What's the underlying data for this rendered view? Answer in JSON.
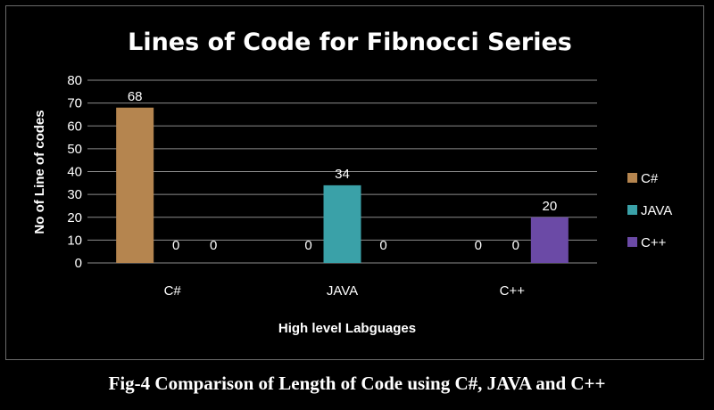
{
  "caption": "Fig-4 Comparison of Length of Code using C#, JAVA and C++",
  "chart_data": {
    "type": "bar",
    "title": "Lines of Code for Fibnocci Series",
    "xlabel": "High level Labguages",
    "ylabel": "No of Line of codes",
    "categories": [
      "C#",
      "JAVA",
      "C++"
    ],
    "series": [
      {
        "name": "C#",
        "color": "#b5854f",
        "values": [
          68,
          0,
          0
        ]
      },
      {
        "name": "JAVA",
        "color": "#3aa1a8",
        "values": [
          0,
          34,
          0
        ]
      },
      {
        "name": "C++",
        "color": "#6b4aa6",
        "values": [
          0,
          0,
          20
        ]
      }
    ],
    "ylim": [
      0,
      80
    ],
    "yticks": [
      0,
      10,
      20,
      30,
      40,
      50,
      60,
      70,
      80
    ],
    "grid": true,
    "legend": "right"
  }
}
